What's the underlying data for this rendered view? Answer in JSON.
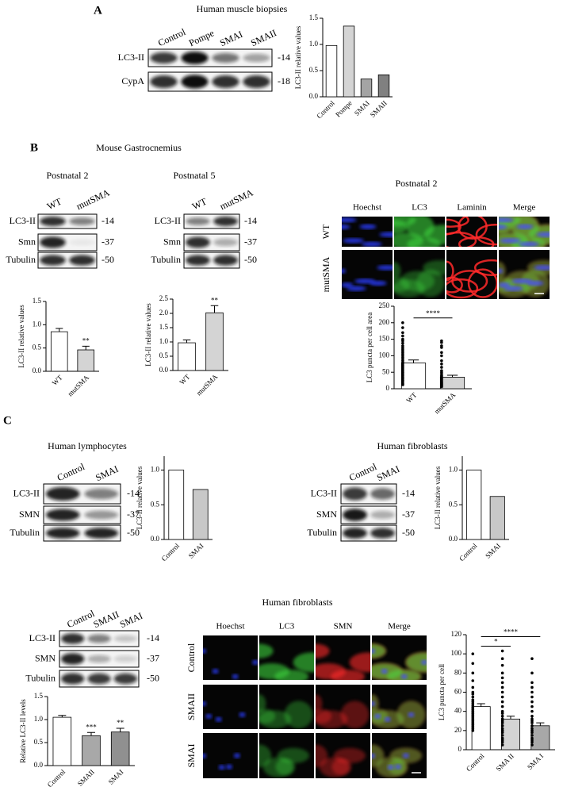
{
  "panel_labels": [
    "A",
    "B",
    "C"
  ],
  "panel_a": {
    "title": "Human muscle biopsies",
    "lanes": [
      "Control",
      "Pompe",
      "SMAI",
      "SMAII"
    ],
    "rows": [
      {
        "label": "LC3-II",
        "marker": "-14"
      },
      {
        "label": "CypA",
        "marker": "-18"
      }
    ]
  },
  "panel_b": {
    "title": "Mouse Gastrocnemius",
    "blots": [
      {
        "title": "Postnatal 2",
        "lanes": [
          "WT",
          "mutSMA"
        ],
        "rows": [
          {
            "label": "LC3-II",
            "marker": "-14"
          },
          {
            "label": "Smn",
            "marker": "-37"
          },
          {
            "label": "Tubulin",
            "marker": "-50"
          }
        ]
      },
      {
        "title": "Postnatal 5",
        "lanes": [
          "WT",
          "mutSMA"
        ],
        "rows": [
          {
            "label": "LC3-II",
            "marker": "-14"
          },
          {
            "label": "Smn",
            "marker": "-37"
          },
          {
            "label": "Tubulin",
            "marker": "-50"
          }
        ]
      }
    ],
    "imaging": {
      "title": "Postnatal 2",
      "columns": [
        "Hoechst",
        "LC3",
        "Laminin",
        "Merge"
      ],
      "rows": [
        "WT",
        "mutSMA"
      ]
    }
  },
  "panel_c": {
    "blots": [
      {
        "title": "Human lymphocytes",
        "lanes": [
          "Control",
          "SMAI"
        ],
        "rows": [
          {
            "label": "LC3-II",
            "marker": "-14"
          },
          {
            "label": "SMN",
            "marker": "-37"
          },
          {
            "label": "Tubulin",
            "marker": "-50"
          }
        ]
      },
      {
        "title": "Human fibroblasts",
        "lanes": [
          "Control",
          "SMAI"
        ],
        "rows": [
          {
            "label": "LC3-II",
            "marker": "-14"
          },
          {
            "label": "SMN",
            "marker": "-37"
          },
          {
            "label": "Tubulin",
            "marker": "-50"
          }
        ]
      },
      {
        "title": "Human fibroblasts",
        "lanes": [
          "Control",
          "SMAII",
          "SMAI"
        ],
        "rows": [
          {
            "label": "LC3-II",
            "marker": "-14"
          },
          {
            "label": "SMN",
            "marker": "-37"
          },
          {
            "label": "Tubulin",
            "marker": "-50"
          }
        ]
      }
    ],
    "imaging": {
      "columns": [
        "Hoechst",
        "LC3",
        "SMN",
        "Merge"
      ],
      "rows": [
        "Control",
        "SMAII",
        "SMAI"
      ]
    }
  },
  "chart_data": [
    {
      "type": "bar",
      "ylabel": "LC3-II relative values",
      "categories": [
        "Control",
        "Pompe",
        "SMAI",
        "SMAII"
      ],
      "values": [
        0.98,
        1.35,
        0.34,
        0.42
      ],
      "colors": [
        "#ffffff",
        "#d4d4d4",
        "#a4a4a4",
        "#808080"
      ],
      "ylim": [
        0,
        1.5
      ],
      "yticks": [
        {
          "value": 0,
          "label": "0.0"
        },
        0.5,
        {
          "value": 1,
          "label": "1.0"
        },
        1.5
      ]
    },
    {
      "type": "bar",
      "ylabel": "LC3-II relative values",
      "categories": [
        "WT",
        "mutSMA"
      ],
      "values": [
        0.85,
        0.46
      ],
      "errors": [
        0.07,
        0.08
      ],
      "colors": [
        "#ffffff",
        "#d4d4d4"
      ],
      "ylim": [
        0,
        1.5
      ],
      "yticks": [
        {
          "value": 0,
          "label": "0.0"
        },
        0.5,
        {
          "value": 1,
          "label": "1.0"
        },
        1.5
      ],
      "annotations": [
        {
          "text": "**",
          "category": "mutSMA"
        }
      ]
    },
    {
      "type": "bar",
      "ylabel": "LC3-II relative values",
      "categories": [
        "WT",
        "mutSMA"
      ],
      "values": [
        0.97,
        2.02
      ],
      "errors": [
        0.1,
        0.25
      ],
      "colors": [
        "#ffffff",
        "#d4d4d4"
      ],
      "ylim": [
        0,
        2.5
      ],
      "yticks": [
        {
          "value": 0,
          "label": "0.0"
        },
        0.5,
        {
          "value": 1,
          "label": "1.0"
        },
        1.5,
        {
          "value": 2,
          "label": "2.0"
        },
        2.5
      ],
      "annotations": [
        {
          "text": "**",
          "category": "mutSMA"
        }
      ]
    },
    {
      "type": "bar",
      "ylabel": "LC3 puncta per cell area",
      "categories": [
        "WT",
        "mutSMA"
      ],
      "values": [
        78,
        35
      ],
      "errors": [
        9,
        6
      ],
      "colors": [
        "#ffffff",
        "#d4d4d4"
      ],
      "points": [
        [
          200,
          185,
          170,
          160,
          150,
          145,
          138,
          130,
          125,
          120,
          115,
          110,
          105,
          100,
          95,
          90,
          85,
          80,
          75,
          70,
          65,
          60,
          55,
          50,
          45,
          40,
          35,
          30,
          25,
          20,
          15,
          12
        ],
        [
          145,
          140,
          130,
          125,
          110,
          100,
          85,
          75,
          65,
          55,
          50,
          45,
          40,
          38,
          35,
          32,
          30,
          28,
          25,
          22,
          20,
          18,
          16,
          14,
          12,
          10,
          8,
          6
        ]
      ],
      "ylim": [
        0,
        250
      ],
      "yticks": [
        0,
        50,
        100,
        150,
        200,
        250
      ],
      "brackets": [
        {
          "text": "****",
          "from": "WT",
          "to": "mutSMA"
        }
      ]
    },
    {
      "type": "bar",
      "ylabel": "LC3-II relative values",
      "categories": [
        "Control",
        "SMAI"
      ],
      "values": [
        1.0,
        0.72
      ],
      "colors": [
        "#ffffff",
        "#c8c8c8"
      ],
      "ylim": [
        0,
        1.2
      ],
      "yticks": [
        {
          "value": 0,
          "label": "0.0"
        },
        0.5,
        {
          "value": 1,
          "label": "1.0"
        }
      ]
    },
    {
      "type": "bar",
      "ylabel": "LC3-II relative values",
      "categories": [
        "Control",
        "SMAI"
      ],
      "values": [
        1.0,
        0.62
      ],
      "colors": [
        "#ffffff",
        "#c8c8c8"
      ],
      "ylim": [
        0,
        1.2
      ],
      "yticks": [
        {
          "value": 0,
          "label": "0.0"
        },
        0.5,
        {
          "value": 1,
          "label": "1.0"
        }
      ]
    },
    {
      "type": "bar",
      "ylabel": "Relative LC3-II levels",
      "categories": [
        "Control",
        "SMAII",
        "SMAI"
      ],
      "values": [
        1.05,
        0.65,
        0.73
      ],
      "errors": [
        0.04,
        0.07,
        0.08
      ],
      "colors": [
        "#ffffff",
        "#a8a8a8",
        "#909090"
      ],
      "ylim": [
        0,
        1.5
      ],
      "yticks": [
        {
          "value": 0,
          "label": "0.0"
        },
        0.5,
        {
          "value": 1,
          "label": "1.0"
        },
        1.5
      ],
      "annotations": [
        {
          "text": "***",
          "category": "SMAII"
        },
        {
          "text": "**",
          "category": "SMAI"
        }
      ]
    },
    {
      "type": "bar",
      "ylabel": "LC3 puncta per cell",
      "categories": [
        "Control",
        "SMA II",
        "SMA I"
      ],
      "values": [
        45,
        32,
        25
      ],
      "errors": [
        3,
        3,
        3
      ],
      "colors": [
        "#ffffff",
        "#d4d4d4",
        "#a8a8a8"
      ],
      "points": [
        [
          100,
          90,
          80,
          72,
          65,
          60,
          58,
          55,
          52,
          50,
          48,
          46,
          44,
          42,
          40,
          38,
          36,
          34,
          32,
          30,
          28,
          26,
          24,
          22,
          20
        ],
        [
          103,
          95,
          88,
          80,
          75,
          70,
          65,
          60,
          55,
          50,
          45,
          40,
          38,
          35,
          32,
          30,
          28,
          25,
          22,
          20,
          18,
          15,
          12,
          10,
          8,
          5
        ],
        [
          95,
          80,
          70,
          65,
          60,
          55,
          50,
          45,
          40,
          35,
          32,
          30,
          28,
          25,
          22,
          20,
          18,
          15,
          12,
          10,
          8,
          5
        ]
      ],
      "ylim": [
        0,
        120
      ],
      "yticks": [
        0,
        20,
        40,
        60,
        80,
        100,
        120
      ],
      "brackets": [
        {
          "text": "*",
          "from": "Control",
          "to": "SMA II"
        },
        {
          "text": "****",
          "from": "Control",
          "to": "SMA I"
        }
      ]
    }
  ]
}
